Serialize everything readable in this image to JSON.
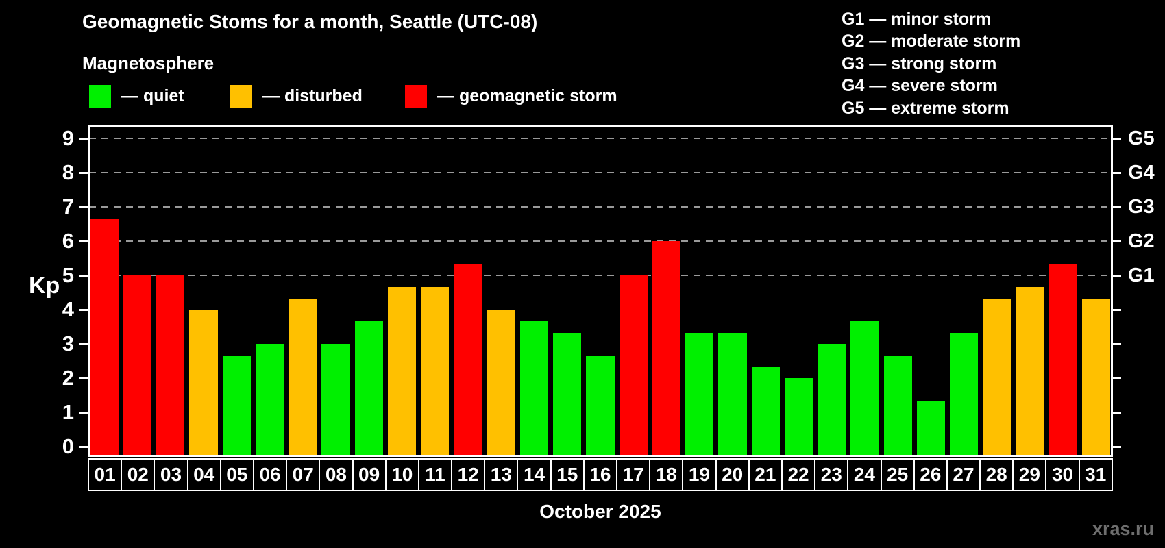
{
  "header": {
    "title": "Geomagnetic Stoms for a month, Seattle (UTC-08)",
    "subtitle": "Magnetosphere"
  },
  "legend": {
    "items": [
      {
        "key": "quiet",
        "label": "— quiet",
        "color": "#00f000"
      },
      {
        "key": "disturbed",
        "label": "— disturbed",
        "color": "#ffc000"
      },
      {
        "key": "storm",
        "label": "— geomagnetic storm",
        "color": "#ff0000"
      }
    ]
  },
  "g_scale_legend": {
    "items": [
      "G1 — minor storm",
      "G2 — moderate storm",
      "G3 — strong storm",
      "G4 — severe storm",
      "G5 — extreme storm"
    ]
  },
  "axis": {
    "y_label": "Kp",
    "y_ticks": [
      "0",
      "1",
      "2",
      "3",
      "4",
      "5",
      "6",
      "7",
      "8",
      "9"
    ],
    "right_labels": [
      {
        "label": "G1",
        "kp": 5
      },
      {
        "label": "G2",
        "kp": 6
      },
      {
        "label": "G3",
        "kp": 7
      },
      {
        "label": "G4",
        "kp": 8
      },
      {
        "label": "G5",
        "kp": 9
      }
    ]
  },
  "footer": {
    "x_axis_title": "October 2025",
    "watermark": "xras.ru"
  },
  "chart_data": {
    "type": "bar",
    "title": "Geomagnetic Stoms for a month, Seattle (UTC-08)",
    "xlabel": "October 2025",
    "ylabel": "Kp",
    "ylim": [
      0,
      9.4
    ],
    "grid": "horizontal dashed lines at Kp 5-9 (G1-G5 storm levels) only",
    "legend_position": "top",
    "categories": [
      "01",
      "02",
      "03",
      "04",
      "05",
      "06",
      "07",
      "08",
      "09",
      "10",
      "11",
      "12",
      "13",
      "14",
      "15",
      "16",
      "17",
      "18",
      "19",
      "20",
      "21",
      "22",
      "23",
      "24",
      "25",
      "26",
      "27",
      "28",
      "29",
      "30",
      "31"
    ],
    "values": [
      6.67,
      5,
      5,
      4,
      2.67,
      3,
      4.33,
      3,
      3.67,
      4.67,
      4.67,
      5.33,
      4,
      3.67,
      3.33,
      2.67,
      5,
      6,
      3.33,
      3.33,
      2.33,
      2,
      3,
      3.67,
      2.67,
      1.33,
      3.33,
      4.33,
      4.67,
      5.33,
      4.33
    ],
    "statuses": [
      "storm",
      "storm",
      "storm",
      "disturbed",
      "quiet",
      "quiet",
      "disturbed",
      "quiet",
      "quiet",
      "disturbed",
      "disturbed",
      "storm",
      "disturbed",
      "quiet",
      "quiet",
      "quiet",
      "storm",
      "storm",
      "quiet",
      "quiet",
      "quiet",
      "quiet",
      "quiet",
      "quiet",
      "quiet",
      "quiet",
      "quiet",
      "disturbed",
      "disturbed",
      "storm",
      "disturbed"
    ]
  }
}
